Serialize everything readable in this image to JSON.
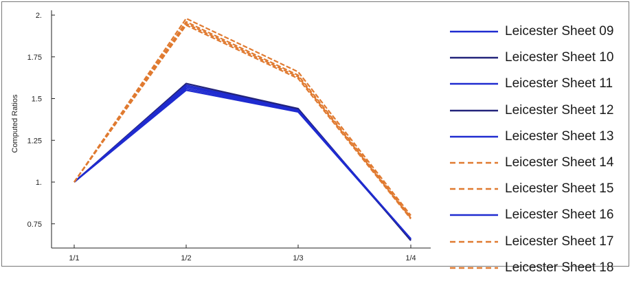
{
  "chart_data": {
    "type": "line",
    "title": "",
    "xlabel": "",
    "ylabel": "Computed Ratios",
    "categories": [
      "1/1",
      "1/2",
      "1/3",
      "1/4"
    ],
    "ylim": [
      0.6,
      2.0
    ],
    "yticks": [
      0.75,
      1,
      1.25,
      1.5,
      1.75,
      2
    ],
    "ytick_labels": [
      "0.75",
      "1.",
      "1.25",
      "1.5",
      "1.75",
      "2."
    ],
    "grid": false,
    "legend_position": "right",
    "colors": {
      "blue": "#1f2bd0",
      "navy": "#22237a",
      "orange": "#e07a30"
    },
    "series": [
      {
        "name": "Leicester Sheet 09",
        "style": "solid",
        "color": "#1f2bd0",
        "values": [
          1,
          1.57,
          1.43,
          0.66
        ]
      },
      {
        "name": "Leicester Sheet 10",
        "style": "solid",
        "color": "#22237a",
        "values": [
          1,
          1.58,
          1.435,
          0.655
        ]
      },
      {
        "name": "Leicester Sheet 11",
        "style": "solid",
        "color": "#1f2bd0",
        "values": [
          1,
          1.55,
          1.42,
          0.655
        ]
      },
      {
        "name": "Leicester Sheet 12",
        "style": "solid",
        "color": "#22237a",
        "values": [
          1,
          1.59,
          1.44,
          0.65
        ]
      },
      {
        "name": "Leicester Sheet 13",
        "style": "solid",
        "color": "#1f2bd0",
        "values": [
          1,
          1.56,
          1.425,
          0.66
        ]
      },
      {
        "name": "Leicester Sheet 14",
        "style": "dashed",
        "color": "#e07a30",
        "values": [
          1,
          1.96,
          1.64,
          0.79
        ]
      },
      {
        "name": "Leicester Sheet 15",
        "style": "dashed",
        "color": "#e07a30",
        "values": [
          1,
          1.94,
          1.62,
          0.78
        ]
      },
      {
        "name": "Leicester Sheet 16",
        "style": "solid",
        "color": "#1f2bd0",
        "values": [
          1,
          1.58,
          1.43,
          0.66
        ]
      },
      {
        "name": "Leicester Sheet 17",
        "style": "dashed",
        "color": "#e07a30",
        "values": [
          1,
          1.98,
          1.66,
          0.8
        ]
      },
      {
        "name": "Leicester Sheet 18",
        "style": "dashed",
        "color": "#e07a30",
        "values": [
          1,
          1.95,
          1.63,
          0.785
        ]
      }
    ]
  }
}
